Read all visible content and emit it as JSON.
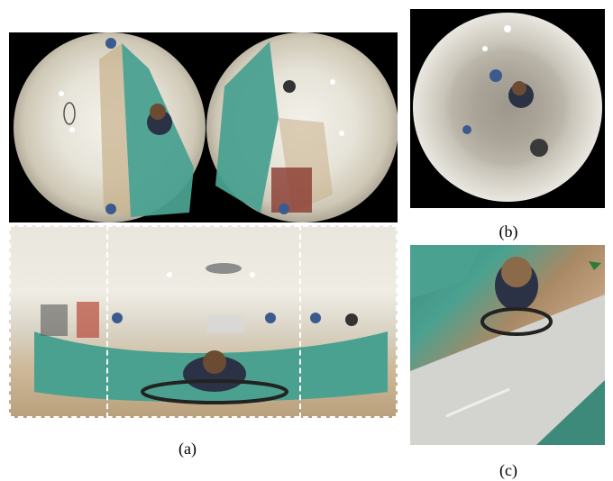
{
  "captions": {
    "a": "(a)",
    "b": "(b)",
    "c": "(c)"
  },
  "colors": {
    "wall": "#4aa190",
    "floor": "#c09f7c",
    "ceiling": "#efece4",
    "background": "#000000"
  }
}
